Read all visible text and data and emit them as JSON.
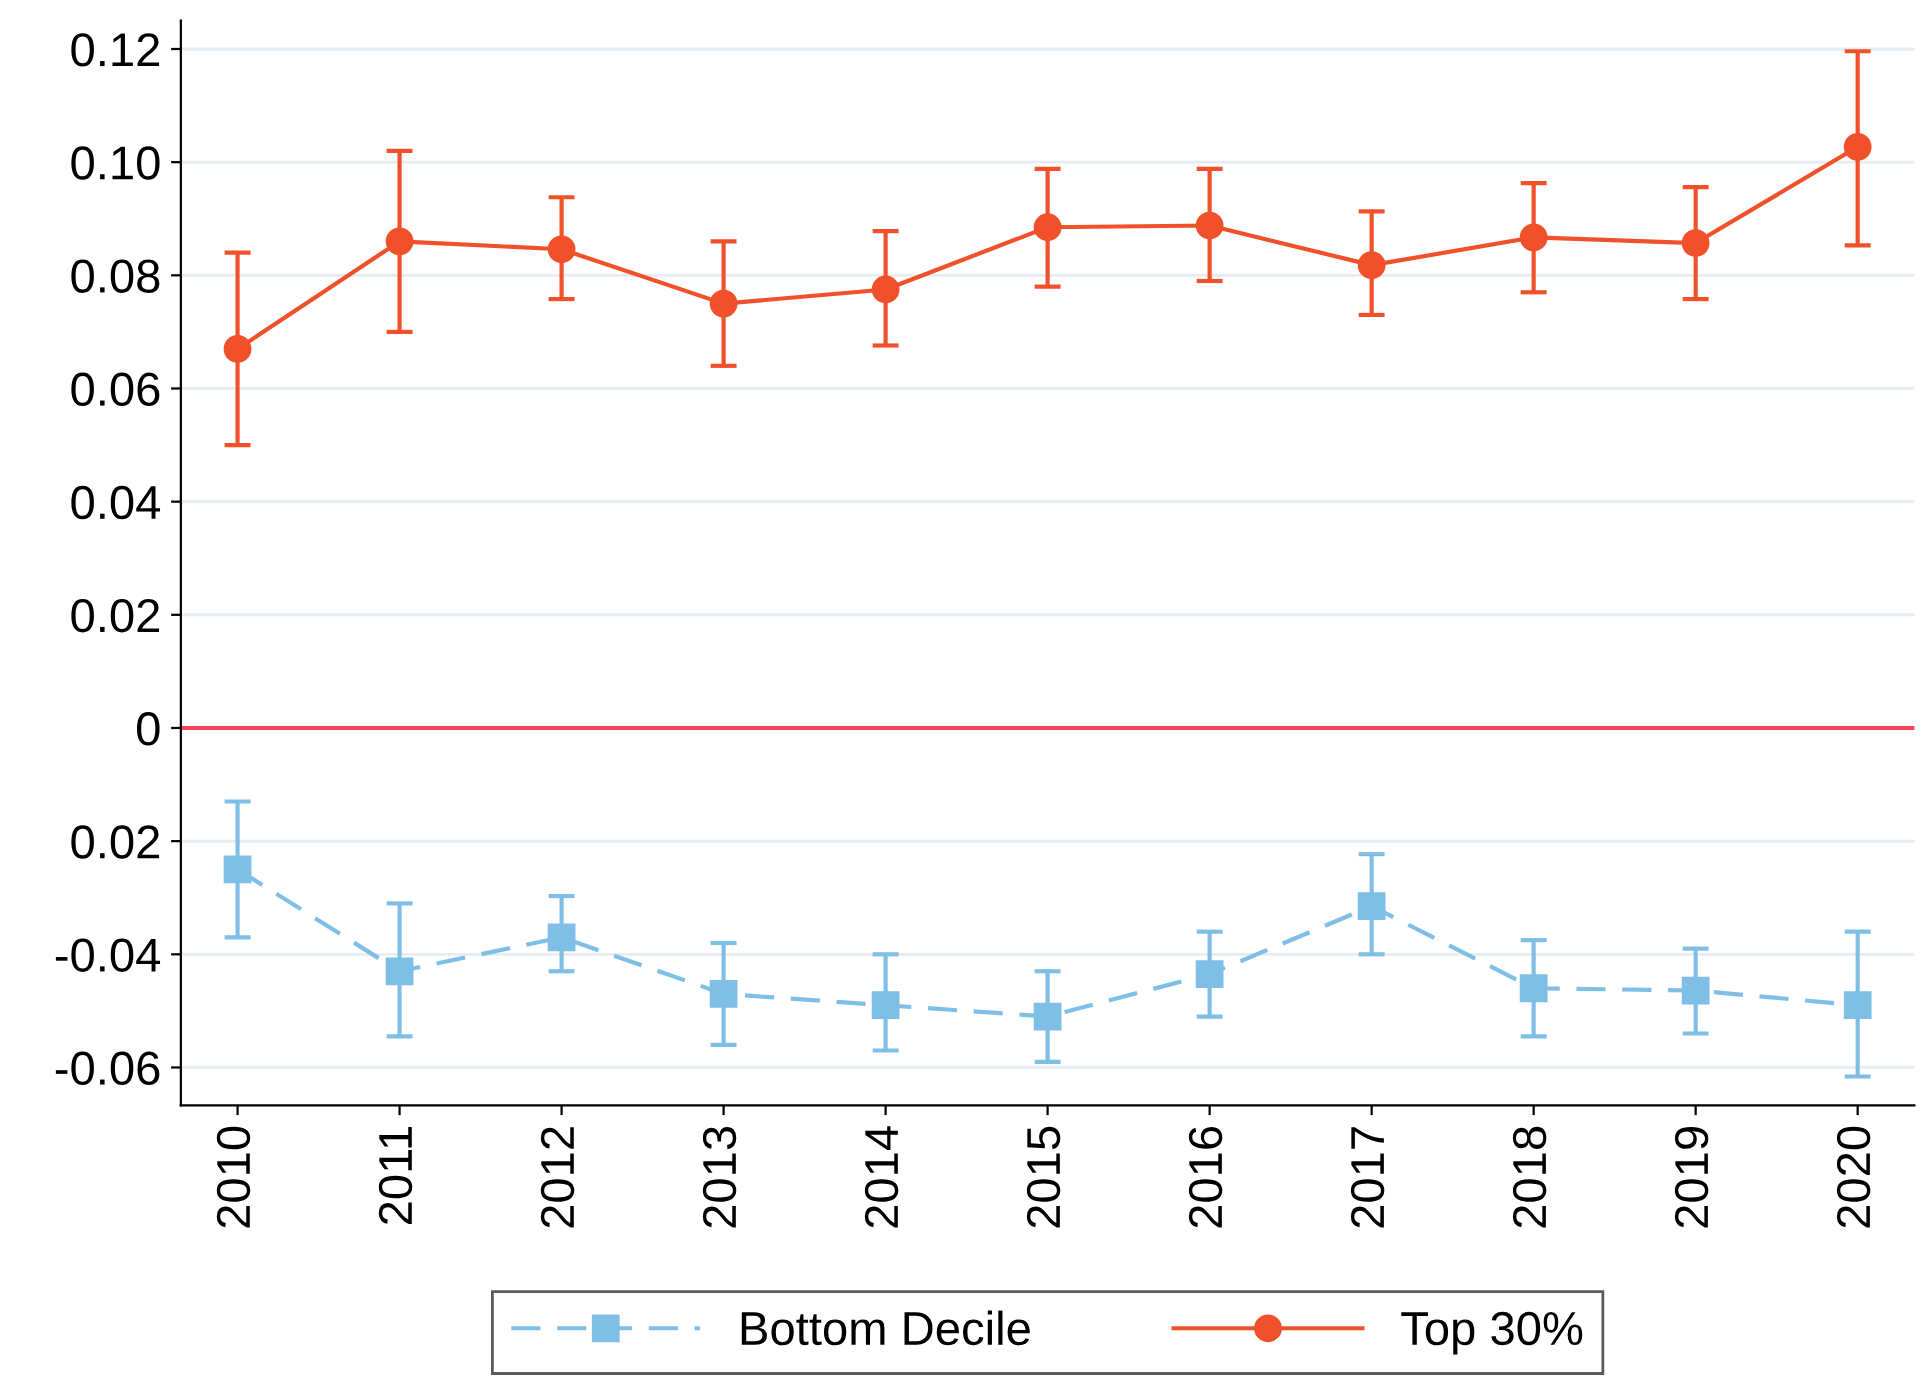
{
  "chart_data": {
    "type": "line",
    "categories": [
      "2010",
      "2011",
      "2012",
      "2013",
      "2014",
      "2015",
      "2016",
      "2017",
      "2018",
      "2019",
      "2020"
    ],
    "series": [
      {
        "name": "Bottom Decile",
        "color": "#7fbfe6",
        "marker": "square",
        "line_style": "dashed",
        "values": [
          -0.025,
          -0.043,
          -0.037,
          -0.047,
          -0.049,
          -0.051,
          -0.0435,
          -0.0315,
          -0.046,
          -0.0464,
          -0.049
        ],
        "errors": [
          [
            -0.037,
            -0.013
          ],
          [
            -0.0545,
            -0.031
          ],
          [
            -0.043,
            -0.0297
          ],
          [
            -0.056,
            -0.038
          ],
          [
            -0.057,
            -0.04
          ],
          [
            -0.059,
            -0.043
          ],
          [
            -0.051,
            -0.036
          ],
          [
            -0.04,
            -0.0223
          ],
          [
            -0.0545,
            -0.0375
          ],
          [
            -0.054,
            -0.039
          ],
          [
            -0.0616,
            -0.036
          ]
        ]
      },
      {
        "name": "Top 30%",
        "color": "#f0502a",
        "marker": "circle",
        "line_style": "solid",
        "values": [
          0.067,
          0.086,
          0.0846,
          0.075,
          0.0775,
          0.0885,
          0.0888,
          0.0818,
          0.0867,
          0.0857,
          0.1027
        ],
        "errors": [
          [
            0.05,
            0.084
          ],
          [
            0.07,
            0.102
          ],
          [
            0.0758,
            0.0938
          ],
          [
            0.064,
            0.086
          ],
          [
            0.0676,
            0.0878
          ],
          [
            0.078,
            0.0988
          ],
          [
            0.079,
            0.0988
          ],
          [
            0.073,
            0.0913
          ],
          [
            0.077,
            0.0963
          ],
          [
            0.0758,
            0.0956
          ],
          [
            0.0853,
            0.1196
          ]
        ]
      }
    ],
    "ylim": [
      -0.0667,
      0.125
    ],
    "yticks": [
      {
        "value": -0.06,
        "label": "-0.06"
      },
      {
        "value": -0.04,
        "label": "-0.04"
      },
      {
        "value": -0.02,
        "label": "0.02"
      },
      0,
      0.02,
      0.04,
      0.06,
      0.08,
      {
        "value": 0.1,
        "label": "0.10"
      },
      0.12
    ],
    "ref_lines": [
      {
        "axis": "y",
        "value": 0,
        "color": "#f0405a",
        "line_style": "solid"
      }
    ],
    "grid": "y",
    "legend": "bottom"
  }
}
